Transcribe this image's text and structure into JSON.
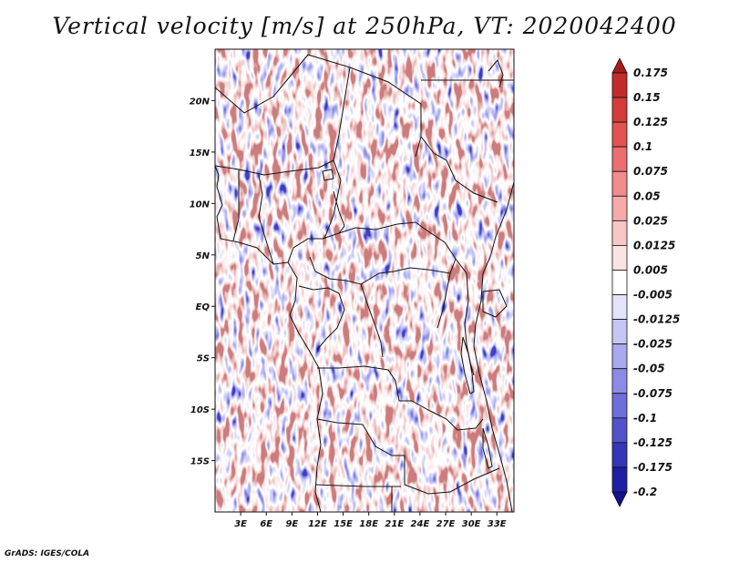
{
  "title": "Vertical velocity [m/s] at 250hPa, VT: 2020042400",
  "credit": "GrADS: IGES/COLA",
  "map": {
    "lat_range": [
      -20,
      25
    ],
    "lon_range": [
      0,
      35
    ],
    "lat_ticks": [
      "20N",
      "15N",
      "10N",
      "5N",
      "EQ",
      "5S",
      "10S",
      "15S"
    ],
    "lat_tick_values": [
      20,
      15,
      10,
      5,
      0,
      -5,
      -10,
      -15
    ],
    "lon_ticks": [
      "3E",
      "6E",
      "9E",
      "12E",
      "15E",
      "18E",
      "21E",
      "24E",
      "27E",
      "30E",
      "33E"
    ],
    "lon_tick_values": [
      3,
      6,
      9,
      12,
      15,
      18,
      21,
      24,
      27,
      30,
      33
    ]
  },
  "colorbar": {
    "labels": [
      "0.175",
      "0.15",
      "0.125",
      "0.1",
      "0.075",
      "0.05",
      "0.025",
      "0.0125",
      "0.005",
      "-0.005",
      "-0.0125",
      "-0.025",
      "-0.05",
      "-0.075",
      "-0.1",
      "-0.125",
      "-0.175",
      "-0.2"
    ],
    "colors": [
      "#a51c1c",
      "#c22b2b",
      "#d43b3b",
      "#e25252",
      "#ec6e6e",
      "#f28c8c",
      "#f6aaaa",
      "#f9c6c6",
      "#fce3e3",
      "#ffffff",
      "#e3e3fb",
      "#c6c6f5",
      "#a9a9ef",
      "#8c8ce6",
      "#6e6edc",
      "#5252cc",
      "#3636b8",
      "#1f1fa3",
      "#12128a"
    ]
  }
}
